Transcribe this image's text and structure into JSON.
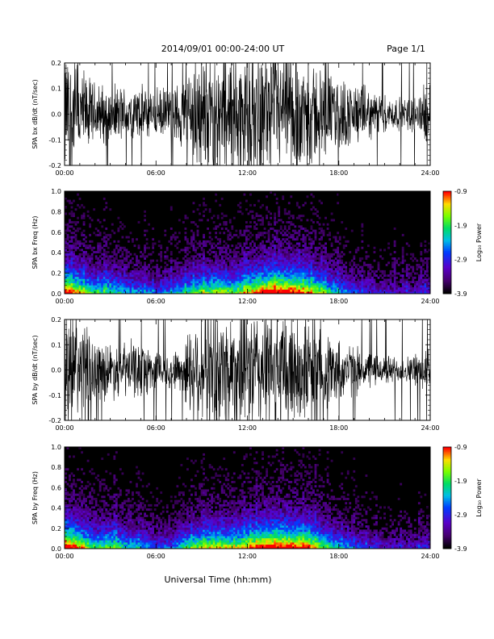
{
  "header": {
    "title": "2014/09/01   00:00-24:00 UT",
    "page": "Page 1/1"
  },
  "xaxis": {
    "label": "Universal Time (hh:mm)",
    "ticks": [
      "00:00",
      "06:00",
      "12:00",
      "18:00",
      "24:00"
    ],
    "range_hours": [
      0,
      24
    ]
  },
  "chart_data": [
    {
      "type": "line",
      "ylabel": "SPA bx dB/dt (nT/sec)",
      "ylim": [
        -0.2,
        0.2
      ],
      "yticks": [
        "-0.2",
        "-0.1",
        "0.0",
        "0.1",
        "0.2"
      ],
      "series": [
        {
          "color": "#000000",
          "envelope_hours": [
            0,
            0.5,
            1,
            1.5,
            2,
            3,
            4,
            5,
            6,
            6.5,
            7,
            7.5,
            8,
            8.5,
            9,
            10,
            11,
            12,
            13,
            14,
            15,
            16,
            17,
            18,
            19,
            20,
            21,
            22,
            23,
            24
          ],
          "envelope_amplitude": [
            0.2,
            0.2,
            0.16,
            0.12,
            0.1,
            0.09,
            0.09,
            0.09,
            0.08,
            0.08,
            0.09,
            0.1,
            0.14,
            0.2,
            0.2,
            0.2,
            0.2,
            0.2,
            0.2,
            0.2,
            0.2,
            0.18,
            0.14,
            0.12,
            0.1,
            0.08,
            0.06,
            0.05,
            0.06,
            0.1
          ]
        }
      ]
    },
    {
      "type": "heatmap",
      "ylabel": "SPA bx Freq (Hz)",
      "ylim": [
        0,
        1
      ],
      "yticks": [
        "0.0",
        "0.2",
        "0.4",
        "0.6",
        "0.8",
        "1.0"
      ],
      "colorbar": {
        "label": "Log₁₀ Power",
        "range": [
          -3.9,
          -0.9
        ],
        "ticks": [
          "-0.9",
          "-1.9",
          "-2.9",
          "-3.9"
        ]
      },
      "activity_hours": [
        0,
        1,
        2,
        3,
        4,
        5,
        6,
        7,
        8,
        9,
        10,
        11,
        12,
        13,
        14,
        15,
        16,
        17,
        18,
        19,
        20,
        21,
        22,
        23,
        24
      ],
      "activity_level": [
        0.9,
        0.7,
        0.5,
        0.55,
        0.45,
        0.4,
        0.35,
        0.4,
        0.5,
        0.6,
        0.65,
        0.6,
        0.7,
        0.85,
        0.9,
        0.85,
        0.75,
        0.6,
        0.45,
        0.35,
        0.3,
        0.25,
        0.25,
        0.25,
        0.3
      ]
    },
    {
      "type": "line",
      "ylabel": "SPA by dB/dt (nT/sec)",
      "ylim": [
        -0.2,
        0.2
      ],
      "yticks": [
        "-0.2",
        "-0.1",
        "0.0",
        "0.1",
        "0.2"
      ],
      "series": [
        {
          "color": "#000000",
          "envelope_hours": [
            0,
            0.5,
            1,
            1.5,
            2,
            3,
            4,
            5,
            6,
            6.5,
            7,
            7.5,
            8,
            8.5,
            9,
            10,
            11,
            12,
            13,
            14,
            15,
            16,
            17,
            18,
            19,
            20,
            21,
            22,
            23,
            24
          ],
          "envelope_amplitude": [
            0.2,
            0.2,
            0.17,
            0.14,
            0.1,
            0.09,
            0.09,
            0.09,
            0.07,
            0.06,
            0.06,
            0.07,
            0.12,
            0.18,
            0.2,
            0.2,
            0.2,
            0.2,
            0.2,
            0.2,
            0.2,
            0.17,
            0.13,
            0.1,
            0.08,
            0.06,
            0.05,
            0.04,
            0.05,
            0.09
          ]
        }
      ]
    },
    {
      "type": "heatmap",
      "ylabel": "SPA by Freq (Hz)",
      "ylim": [
        0,
        1
      ],
      "yticks": [
        "0.0",
        "0.2",
        "0.4",
        "0.6",
        "0.8",
        "1.0"
      ],
      "colorbar": {
        "label": "Log₁₀ Power",
        "range": [
          -3.9,
          -0.9
        ],
        "ticks": [
          "-0.9",
          "-1.9",
          "-2.9",
          "-3.9"
        ]
      },
      "activity_hours": [
        0,
        1,
        2,
        3,
        4,
        5,
        6,
        7,
        8,
        9,
        10,
        11,
        12,
        13,
        14,
        15,
        16,
        17,
        18,
        19,
        20,
        21,
        22,
        23,
        24
      ],
      "activity_level": [
        0.95,
        0.75,
        0.55,
        0.6,
        0.5,
        0.45,
        0.35,
        0.35,
        0.55,
        0.65,
        0.7,
        0.65,
        0.75,
        0.85,
        0.9,
        0.85,
        0.8,
        0.6,
        0.45,
        0.35,
        0.3,
        0.25,
        0.25,
        0.25,
        0.3
      ]
    }
  ]
}
